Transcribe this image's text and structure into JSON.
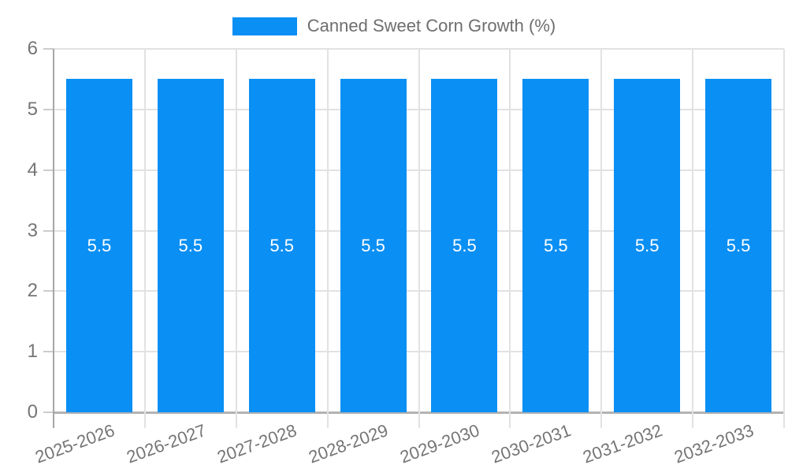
{
  "chart_data": {
    "type": "bar",
    "title": "Canned Sweet Corn Growth (%)",
    "categories": [
      "2025-2026",
      "2026-2027",
      "2027-2028",
      "2028-2029",
      "2029-2030",
      "2030-2031",
      "2031-2032",
      "2032-2033"
    ],
    "series": [
      {
        "name": "Canned Sweet Corn Growth (%)",
        "color": "#0A8FF4",
        "values": [
          5.5,
          5.5,
          5.5,
          5.5,
          5.5,
          5.5,
          5.5,
          5.5
        ]
      }
    ],
    "bar_value_labels": [
      "5.5",
      "5.5",
      "5.5",
      "5.5",
      "5.5",
      "5.5",
      "5.5",
      "5.5"
    ],
    "xlabel": "",
    "ylabel": "",
    "ylim": [
      0,
      6
    ],
    "yticks": [
      0,
      1,
      2,
      3,
      4,
      5,
      6
    ],
    "grid": true,
    "legend_position": "top",
    "colors": {
      "bar": "#0A8FF4",
      "bar_label": "#FFFFFF",
      "axis_text": "#757575",
      "legend_text": "#6E6E6E",
      "gridline": "#E2E2E2",
      "y_axis_line": "#A6A6A6",
      "baseline": "#B3B3B3",
      "tick_mark": "#CCCCCC"
    }
  }
}
